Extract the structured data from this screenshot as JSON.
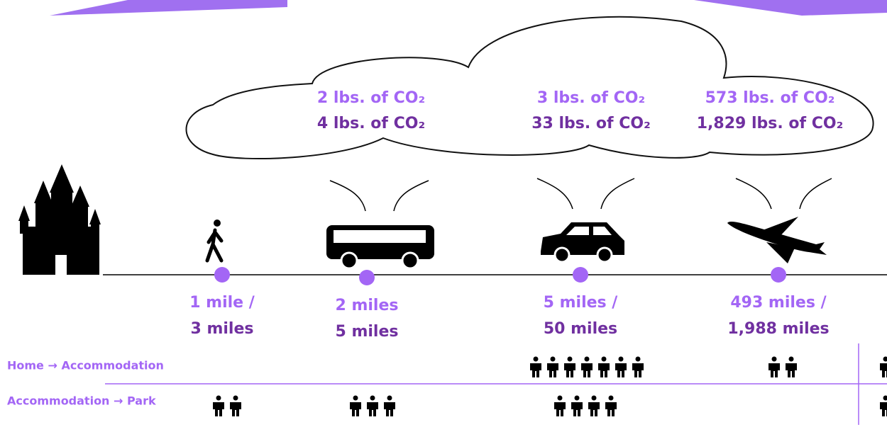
{
  "emissions": [
    {
      "first": "2 lbs. of CO₂",
      "second": "4 lbs. of CO₂"
    },
    {
      "first": "3 lbs. of CO₂",
      "second": "33 lbs. of CO₂"
    },
    {
      "first": "573 lbs. of CO₂",
      "second": "1,829 lbs. of CO₂"
    }
  ],
  "distances": [
    {
      "first": "1 mile /",
      "second": "3 miles"
    },
    {
      "first": "2 miles",
      "second": "5 miles"
    },
    {
      "first": "5 miles /",
      "second": "50 miles"
    },
    {
      "first": "493 miles /",
      "second": "1,988 miles"
    }
  ],
  "rows": {
    "home": "Home → Accommodation",
    "park": "Accommodation → Park"
  },
  "people_home": [
    7,
    2,
    1
  ],
  "people_park": [
    2,
    3,
    4,
    1
  ]
}
